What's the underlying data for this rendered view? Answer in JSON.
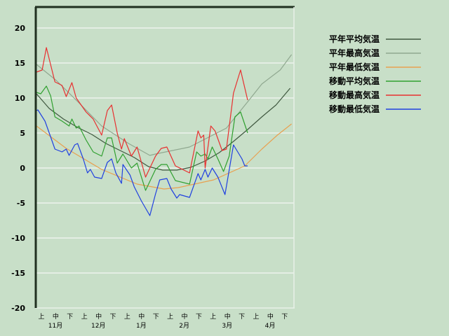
{
  "chart_data": {
    "type": "line",
    "ylim": [
      -20,
      23
    ],
    "yticks": [
      "20",
      "15",
      "10",
      "5",
      "0",
      "-5",
      "-10",
      "-15",
      "-20"
    ],
    "ytick_values": [
      20,
      15,
      10,
      5,
      0,
      -5,
      -10,
      -15,
      -20
    ],
    "xlim": [
      "11/01",
      "04/30"
    ],
    "dekad_labels": [
      "上",
      "中",
      "下",
      "上",
      "中",
      "下",
      "上",
      "中",
      "下",
      "上",
      "中",
      "下",
      "上",
      "中",
      "下",
      "上",
      "中",
      "下"
    ],
    "month_labels": [
      "11月",
      "12月",
      "1月",
      "2月",
      "3月",
      "4月"
    ],
    "grid": true,
    "legend_position": "right",
    "series": [
      {
        "name": "平年平均気温",
        "color": "#405840",
        "points": [
          [
            "11/01",
            10.6
          ],
          [
            "11/10",
            8.5
          ],
          [
            "11/20",
            7
          ],
          [
            "11/30",
            5.8
          ],
          [
            "12/10",
            4.8
          ],
          [
            "12/20",
            3.5
          ],
          [
            "12/30",
            2.5
          ],
          [
            "01/09",
            1.5
          ],
          [
            "01/19",
            0.2
          ],
          [
            "01/29",
            -0.3
          ],
          [
            "02/08",
            -0.3
          ],
          [
            "02/18",
            0.1
          ],
          [
            "02/28",
            1
          ],
          [
            "03/10",
            2.2
          ],
          [
            "03/20",
            3.8
          ],
          [
            "03/30",
            5.5
          ],
          [
            "04/09",
            7.3
          ],
          [
            "04/19",
            9
          ],
          [
            "04/29",
            11.4
          ]
        ]
      },
      {
        "name": "平年最高気温",
        "color": "#90a890",
        "points": [
          [
            "11/01",
            14.8
          ],
          [
            "11/15",
            12.5
          ],
          [
            "12/01",
            9.3
          ],
          [
            "12/17",
            6
          ],
          [
            "01/05",
            3.5
          ],
          [
            "01/20",
            1.8
          ],
          [
            "01/24",
            2
          ],
          [
            "02/17",
            3
          ],
          [
            "03/15",
            5.7
          ],
          [
            "03/31",
            9.7
          ],
          [
            "04/09",
            12
          ],
          [
            "04/22",
            14
          ],
          [
            "04/30",
            16.2
          ]
        ]
      },
      {
        "name": "平年最低気温",
        "color": "#e8a050",
        "points": [
          [
            "11/01",
            6
          ],
          [
            "11/22",
            2.8
          ],
          [
            "12/17",
            -0.2
          ],
          [
            "01/11",
            -2.3
          ],
          [
            "01/30",
            -3
          ],
          [
            "02/09",
            -2.8
          ],
          [
            "03/06",
            -1.7
          ],
          [
            "03/28",
            0.3
          ],
          [
            "04/09",
            2.7
          ],
          [
            "04/20",
            4.7
          ],
          [
            "04/30",
            6.3
          ]
        ]
      },
      {
        "name": "移動平均気温",
        "color": "#30a030",
        "points": [
          [
            "11/01",
            10.8
          ],
          [
            "11/04",
            10.6
          ],
          [
            "11/08",
            11.7
          ],
          [
            "11/11",
            10.3
          ],
          [
            "11/14",
            7.3
          ],
          [
            "11/19",
            6.7
          ],
          [
            "11/24",
            6
          ],
          [
            "11/26",
            7
          ],
          [
            "11/29",
            5.7
          ],
          [
            "12/01",
            6
          ],
          [
            "12/06",
            4
          ],
          [
            "12/11",
            2.3
          ],
          [
            "12/17",
            1.7
          ],
          [
            "12/21",
            4.3
          ],
          [
            "12/24",
            4.3
          ],
          [
            "12/28",
            0.7
          ],
          [
            "01/01",
            2
          ],
          [
            "01/07",
            0
          ],
          [
            "01/11",
            0.7
          ],
          [
            "01/17",
            -3.2
          ],
          [
            "01/24",
            -0.2
          ],
          [
            "01/28",
            0.5
          ],
          [
            "02/01",
            0.5
          ],
          [
            "02/07",
            -1.8
          ],
          [
            "02/17",
            -2.3
          ],
          [
            "02/22",
            2.3
          ],
          [
            "02/25",
            1.7
          ],
          [
            "02/28",
            2
          ],
          [
            "03/02",
            1.3
          ],
          [
            "03/05",
            3
          ],
          [
            "03/09",
            1.3
          ],
          [
            "03/13",
            -0.5
          ],
          [
            "03/17",
            1.7
          ],
          [
            "03/21",
            7.3
          ],
          [
            "03/25",
            8
          ],
          [
            "03/30",
            5
          ]
        ]
      },
      {
        "name": "移動最高気温",
        "color": "#e83030",
        "points": [
          [
            "11/01",
            13.7
          ],
          [
            "11/05",
            14
          ],
          [
            "11/08",
            17.2
          ],
          [
            "11/14",
            12.3
          ],
          [
            "11/19",
            11.8
          ],
          [
            "11/22",
            10.2
          ],
          [
            "11/26",
            12.2
          ],
          [
            "11/29",
            10
          ],
          [
            "12/06",
            8
          ],
          [
            "12/11",
            7
          ],
          [
            "12/17",
            4.7
          ],
          [
            "12/21",
            8.2
          ],
          [
            "12/24",
            9
          ],
          [
            "12/28",
            5
          ],
          [
            "12/31",
            2.7
          ],
          [
            "01/02",
            4.2
          ],
          [
            "01/07",
            1.7
          ],
          [
            "01/11",
            3
          ],
          [
            "01/17",
            -1.3
          ],
          [
            "01/24",
            1.7
          ],
          [
            "01/28",
            2.8
          ],
          [
            "02/01",
            3
          ],
          [
            "02/07",
            0.3
          ],
          [
            "02/17",
            -0.7
          ],
          [
            "02/23",
            5.3
          ],
          [
            "02/25",
            4.3
          ],
          [
            "02/27",
            4.7
          ],
          [
            "02/28",
            0
          ],
          [
            "03/04",
            6
          ],
          [
            "03/07",
            5.3
          ],
          [
            "03/12",
            2.5
          ],
          [
            "03/15",
            2.7
          ],
          [
            "03/20",
            10.7
          ],
          [
            "03/25",
            14
          ],
          [
            "03/30",
            9.7
          ]
        ]
      },
      {
        "name": "移動最低気温",
        "color": "#2040e0",
        "points": [
          [
            "11/01",
            8.2
          ],
          [
            "11/02",
            8.3
          ],
          [
            "11/07",
            6.7
          ],
          [
            "11/10",
            5
          ],
          [
            "11/14",
            2.7
          ],
          [
            "11/19",
            2.3
          ],
          [
            "11/22",
            2.7
          ],
          [
            "11/24",
            1.8
          ],
          [
            "11/28",
            3.3
          ],
          [
            "11/30",
            3.5
          ],
          [
            "12/04",
            1.3
          ],
          [
            "12/07",
            -0.7
          ],
          [
            "12/09",
            -0.2
          ],
          [
            "12/12",
            -1.3
          ],
          [
            "12/17",
            -1.5
          ],
          [
            "12/21",
            0.8
          ],
          [
            "12/24",
            1.3
          ],
          [
            "12/27",
            -0.7
          ],
          [
            "12/31",
            -2.2
          ],
          [
            "01/01",
            0.5
          ],
          [
            "01/06",
            -1
          ],
          [
            "01/09",
            -2.7
          ],
          [
            "01/14",
            -4.7
          ],
          [
            "01/20",
            -6.8
          ],
          [
            "01/24",
            -3.7
          ],
          [
            "01/27",
            -1.7
          ],
          [
            "02/01",
            -1.5
          ],
          [
            "02/04",
            -3
          ],
          [
            "02/08",
            -4.3
          ],
          [
            "02/10",
            -3.8
          ],
          [
            "02/17",
            -4.2
          ],
          [
            "02/23",
            -0.8
          ],
          [
            "02/25",
            -1.7
          ],
          [
            "02/28",
            -0.2
          ],
          [
            "03/02",
            -1.3
          ],
          [
            "03/05",
            0
          ],
          [
            "03/09",
            -1.3
          ],
          [
            "03/14",
            -3.8
          ],
          [
            "03/20",
            3.3
          ],
          [
            "03/26",
            1.3
          ],
          [
            "03/28",
            0.3
          ],
          [
            "03/30",
            0.3
          ]
        ]
      }
    ]
  }
}
